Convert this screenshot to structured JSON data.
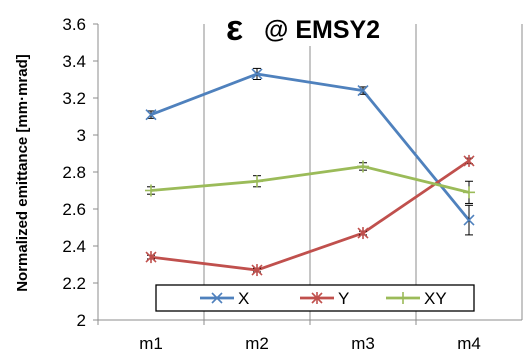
{
  "chart_data": {
    "type": "line",
    "title_symbol": "ε",
    "title_text": "@ EMSY2",
    "ylabel": "Normalized emittance [mm·mrad]",
    "xlabel": "",
    "categories": [
      "m1",
      "m2",
      "m3",
      "m4"
    ],
    "ylim": [
      2,
      3.6
    ],
    "yticks": [
      "2",
      "2.2",
      "2.4",
      "2.6",
      "2.8",
      "3",
      "3.2",
      "3.4",
      "3.6"
    ],
    "grid": "vertical",
    "legend_position": "bottom",
    "series": [
      {
        "name": "X",
        "color": "#4f81bd",
        "marker": "x-bar",
        "values": [
          3.11,
          3.33,
          3.24,
          2.54
        ],
        "errors": [
          0.02,
          0.03,
          0.02,
          0.08
        ]
      },
      {
        "name": "Y",
        "color": "#c0504d",
        "marker": "star",
        "values": [
          2.34,
          2.27,
          2.47,
          2.86
        ],
        "errors": [
          0.01,
          0.01,
          0.01,
          0.015
        ]
      },
      {
        "name": "XY",
        "color": "#9bbb59",
        "marker": "plus",
        "values": [
          2.7,
          2.75,
          2.83,
          2.69
        ],
        "errors": [
          0.02,
          0.03,
          0.02,
          0.06
        ]
      }
    ]
  }
}
